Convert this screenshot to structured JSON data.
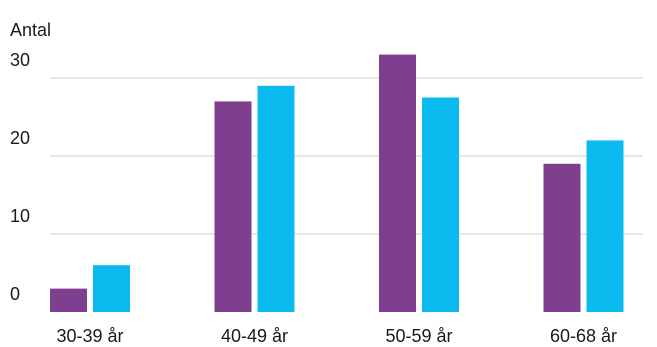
{
  "chart_data": {
    "type": "bar",
    "title": "",
    "xlabel": "",
    "ylabel": "Antal",
    "ylim": [
      0,
      30
    ],
    "yticks": [
      0,
      10,
      20,
      30
    ],
    "grid": true,
    "legend": "none",
    "categories": [
      "30-39 år",
      "40-49 år",
      "50-59 år",
      "60-68 år"
    ],
    "series": [
      {
        "color": "#7E3F8F",
        "values": [
          3,
          27,
          33,
          19
        ]
      },
      {
        "color": "#0BBBEF",
        "values": [
          6,
          29,
          27.5,
          22
        ]
      }
    ]
  }
}
